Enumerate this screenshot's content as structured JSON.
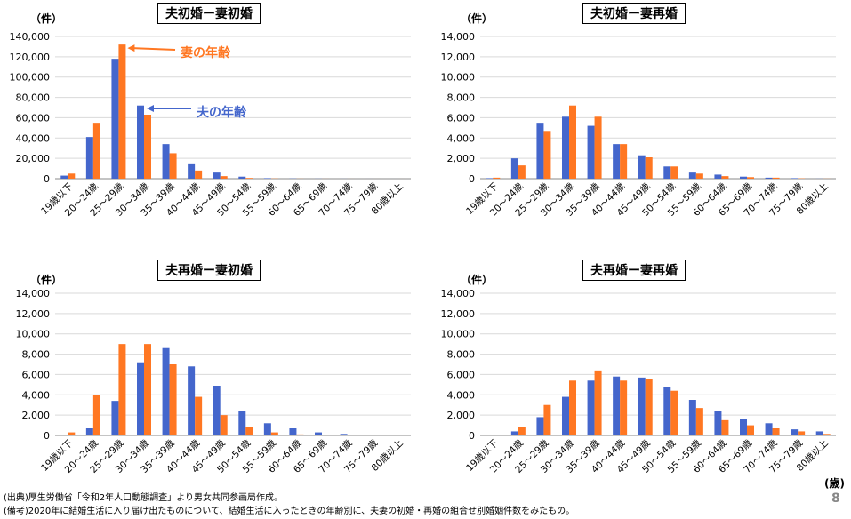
{
  "colors": {
    "husband": "#4466cc",
    "wife": "#ff7722",
    "husband_annot": "#4466cc",
    "wife_annot": "#ff7722"
  },
  "unit_label": "（件）",
  "annotations": {
    "wife_age": "妻の年齢",
    "husband_age": "夫の年齢"
  },
  "x_unit": "(歳)",
  "page_number": "8",
  "footer": {
    "source": "(出典)厚生労働省「令和2年人口動態調査」より男女共同参画局作成。",
    "note": "(備考)2020年に結婚生活に入り届け出たものについて、結婚生活に入ったときの年齢別に、夫妻の初婚・再婚の組合せ別婚姻件数をみたもの。"
  },
  "chart_data": [
    {
      "type": "bar",
      "title": "夫初婚ー妻初婚",
      "categories": [
        "19歳以下",
        "20～24歳",
        "25～29歳",
        "30～34歳",
        "35～39歳",
        "40～44歳",
        "45～49歳",
        "50～54歳",
        "55～59歳",
        "60～64歳",
        "65～69歳",
        "70～74歳",
        "75～79歳",
        "80歳以上"
      ],
      "series": [
        {
          "name": "夫の年齢",
          "values": [
            3000,
            41000,
            118000,
            72000,
            34000,
            15000,
            6000,
            2000,
            500,
            200,
            100,
            50,
            20,
            10
          ]
        },
        {
          "name": "妻の年齢",
          "values": [
            5000,
            55000,
            132000,
            63000,
            25000,
            8000,
            2500,
            700,
            200,
            80,
            40,
            20,
            10,
            5
          ]
        }
      ],
      "ylim": [
        0,
        140000
      ],
      "yticks": [
        "0",
        "20,000",
        "40,000",
        "60,000",
        "80,000",
        "100,000",
        "120,000",
        "140,000"
      ]
    },
    {
      "type": "bar",
      "title": "夫初婚ー妻再婚",
      "categories": [
        "19歳以下",
        "20～24歳",
        "25～29歳",
        "30～34歳",
        "35～39歳",
        "40～44歳",
        "45～49歳",
        "50～54歳",
        "55～59歳",
        "60～64歳",
        "65～69歳",
        "70～74歳",
        "75～79歳",
        "80歳以上"
      ],
      "series": [
        {
          "name": "夫の年齢",
          "values": [
            50,
            2000,
            5500,
            6100,
            5200,
            3400,
            2300,
            1200,
            600,
            400,
            200,
            100,
            50,
            10
          ]
        },
        {
          "name": "妻の年齢",
          "values": [
            100,
            1300,
            4700,
            7200,
            6100,
            3400,
            2100,
            1200,
            500,
            250,
            150,
            100,
            30,
            10
          ]
        }
      ],
      "ylim": [
        0,
        14000
      ],
      "yticks": [
        "0",
        "2,000",
        "4,000",
        "6,000",
        "8,000",
        "10,000",
        "12,000",
        "14,000"
      ]
    },
    {
      "type": "bar",
      "title": "夫再婚ー妻初婚",
      "categories": [
        "19歳以下",
        "20～24歳",
        "25～29歳",
        "30～34歳",
        "35～39歳",
        "40～44歳",
        "45～49歳",
        "50～54歳",
        "55～59歳",
        "60～64歳",
        "65～69歳",
        "70～74歳",
        "75～79歳",
        "80歳以上"
      ],
      "series": [
        {
          "name": "夫の年齢",
          "values": [
            20,
            700,
            3400,
            7200,
            8600,
            6800,
            4900,
            2400,
            1200,
            700,
            300,
            150,
            60,
            20
          ]
        },
        {
          "name": "妻の年齢",
          "values": [
            300,
            4000,
            9000,
            9000,
            7000,
            3800,
            2000,
            800,
            300,
            100,
            50,
            20,
            10,
            5
          ]
        }
      ],
      "ylim": [
        0,
        14000
      ],
      "yticks": [
        "0",
        "2,000",
        "4,000",
        "6,000",
        "8,000",
        "10,000",
        "12,000",
        "14,000"
      ]
    },
    {
      "type": "bar",
      "title": "夫再婚ー妻再婚",
      "categories": [
        "19歳以下",
        "20～24歳",
        "25～29歳",
        "30～34歳",
        "35～39歳",
        "40～44歳",
        "45～49歳",
        "50～54歳",
        "55～59歳",
        "60～64歳",
        "65～69歳",
        "70～74歳",
        "75～79歳",
        "80歳以上"
      ],
      "series": [
        {
          "name": "夫の年齢",
          "values": [
            20,
            400,
            1800,
            3800,
            5400,
            5800,
            5700,
            4800,
            3500,
            2400,
            1600,
            1200,
            600,
            400
          ]
        },
        {
          "name": "妻の年齢",
          "values": [
            50,
            800,
            3000,
            5400,
            6400,
            5400,
            5600,
            4400,
            2700,
            1500,
            1000,
            700,
            400,
            150
          ]
        }
      ],
      "ylim": [
        0,
        14000
      ],
      "yticks": [
        "0",
        "2,000",
        "4,000",
        "6,000",
        "8,000",
        "10,000",
        "12,000",
        "14,000"
      ]
    }
  ]
}
